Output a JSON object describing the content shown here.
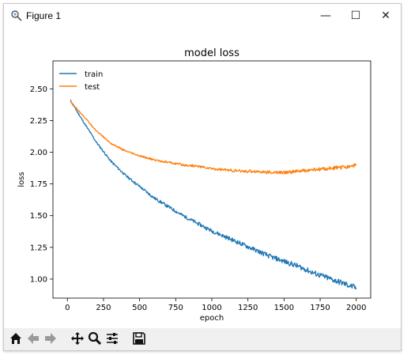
{
  "window": {
    "title": "Figure 1",
    "controls": [
      "—",
      "☐",
      "✕"
    ]
  },
  "toolbar": {
    "buttons": [
      "home-icon",
      "back-icon",
      "forward-icon",
      "pan-icon",
      "zoom-icon",
      "configure-subplots-icon",
      "save-icon"
    ]
  },
  "chart_data": {
    "type": "line",
    "title": "model loss",
    "xlabel": "epoch",
    "ylabel": "loss",
    "xlim": [
      -100,
      2100
    ],
    "ylim": [
      0.85,
      2.72
    ],
    "xticks": [
      0,
      250,
      500,
      750,
      1000,
      1250,
      1500,
      1750,
      2000
    ],
    "xtick_labels": [
      "0",
      "250",
      "500",
      "750",
      "1000",
      "1250",
      "1500",
      "1750",
      "2000"
    ],
    "yticks": [
      1.0,
      1.25,
      1.5,
      1.75,
      2.0,
      2.25,
      2.5
    ],
    "ytick_labels": [
      "1.00",
      "1.25",
      "1.50",
      "1.75",
      "2.00",
      "2.25",
      "2.50"
    ],
    "legend_position": "top-left",
    "grid": false,
    "series": [
      {
        "name": "train",
        "color": "#1f77b4",
        "x": [
          20,
          100,
          200,
          300,
          400,
          500,
          600,
          700,
          800,
          900,
          1000,
          1100,
          1200,
          1300,
          1400,
          1500,
          1600,
          1700,
          1800,
          1900,
          2000
        ],
        "y": [
          2.41,
          2.26,
          2.08,
          1.93,
          1.82,
          1.73,
          1.64,
          1.57,
          1.5,
          1.44,
          1.38,
          1.33,
          1.28,
          1.23,
          1.18,
          1.14,
          1.1,
          1.05,
          1.01,
          0.97,
          0.93
        ]
      },
      {
        "name": "test",
        "color": "#ff7f0e",
        "x": [
          20,
          100,
          200,
          300,
          400,
          500,
          600,
          700,
          800,
          900,
          1000,
          1100,
          1200,
          1300,
          1400,
          1500,
          1600,
          1700,
          1800,
          1900,
          2000
        ],
        "y": [
          2.4,
          2.3,
          2.17,
          2.07,
          2.01,
          1.97,
          1.94,
          1.92,
          1.9,
          1.89,
          1.87,
          1.86,
          1.85,
          1.85,
          1.84,
          1.84,
          1.85,
          1.86,
          1.87,
          1.88,
          1.9
        ]
      }
    ]
  }
}
